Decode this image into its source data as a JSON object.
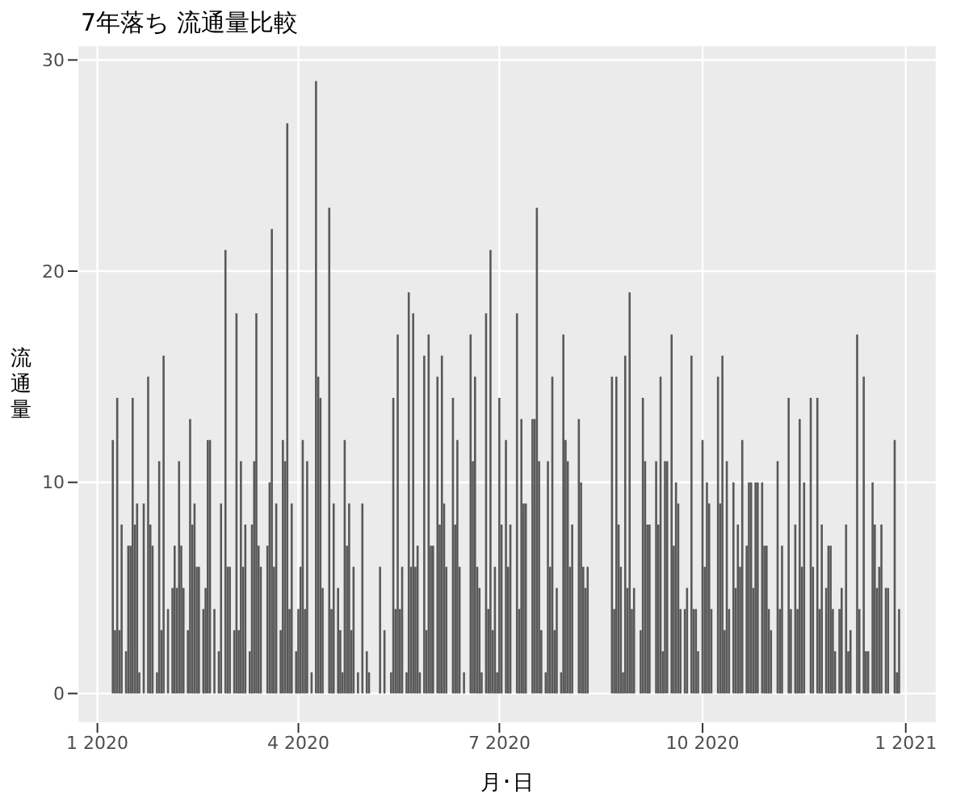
{
  "chart_data": {
    "type": "bar",
    "title": "7年落ち 流通量比較",
    "xlabel": "月･日",
    "ylabel": "流通量",
    "color": "#595959",
    "grid": true,
    "xlim": [
      "2019-12-23",
      "2021-01-15"
    ],
    "xticks": [
      {
        "value": "2020-01-01",
        "label": "1 2020"
      },
      {
        "value": "2020-04-01",
        "label": "4 2020"
      },
      {
        "value": "2020-07-01",
        "label": "7 2020"
      },
      {
        "value": "2020-10-01",
        "label": "10 2020"
      },
      {
        "value": "2021-01-01",
        "label": "1 2021"
      }
    ],
    "ylim": [
      -1.4,
      30.7
    ],
    "yticks": [
      0,
      10,
      20,
      30
    ],
    "x": [
      "2020-01-08",
      "2020-01-09",
      "2020-01-10",
      "2020-01-11",
      "2020-01-12",
      "2020-01-14",
      "2020-01-15",
      "2020-01-16",
      "2020-01-17",
      "2020-01-18",
      "2020-01-19",
      "2020-01-20",
      "2020-01-22",
      "2020-01-24",
      "2020-01-25",
      "2020-01-26",
      "2020-01-28",
      "2020-01-29",
      "2020-01-30",
      "2020-01-31",
      "2020-02-02",
      "2020-02-04",
      "2020-02-05",
      "2020-02-06",
      "2020-02-07",
      "2020-02-08",
      "2020-02-09",
      "2020-02-11",
      "2020-02-12",
      "2020-02-13",
      "2020-02-14",
      "2020-02-15",
      "2020-02-16",
      "2020-02-18",
      "2020-02-19",
      "2020-02-20",
      "2020-02-21",
      "2020-02-23",
      "2020-02-25",
      "2020-02-26",
      "2020-02-28",
      "2020-02-29",
      "2020-03-01",
      "2020-03-03",
      "2020-03-04",
      "2020-03-05",
      "2020-03-06",
      "2020-03-07",
      "2020-03-08",
      "2020-03-10",
      "2020-03-11",
      "2020-03-12",
      "2020-03-13",
      "2020-03-14",
      "2020-03-15",
      "2020-03-18",
      "2020-03-19",
      "2020-03-20",
      "2020-03-21",
      "2020-03-22",
      "2020-03-24",
      "2020-03-25",
      "2020-03-26",
      "2020-03-27",
      "2020-03-28",
      "2020-03-29",
      "2020-03-31",
      "2020-04-01",
      "2020-04-02",
      "2020-04-03",
      "2020-04-04",
      "2020-04-05",
      "2020-04-07",
      "2020-04-09",
      "2020-04-10",
      "2020-04-11",
      "2020-04-12",
      "2020-04-15",
      "2020-04-16",
      "2020-04-17",
      "2020-04-19",
      "2020-04-20",
      "2020-04-21",
      "2020-04-22",
      "2020-04-23",
      "2020-04-24",
      "2020-04-25",
      "2020-04-26",
      "2020-04-28",
      "2020-04-30",
      "2020-05-02",
      "2020-05-03",
      "2020-05-08",
      "2020-05-10",
      "2020-05-13",
      "2020-05-14",
      "2020-05-15",
      "2020-05-16",
      "2020-05-17",
      "2020-05-18",
      "2020-05-20",
      "2020-05-21",
      "2020-05-22",
      "2020-05-23",
      "2020-05-24",
      "2020-05-25",
      "2020-05-26",
      "2020-05-28",
      "2020-05-29",
      "2020-05-30",
      "2020-05-31",
      "2020-06-01",
      "2020-06-03",
      "2020-06-04",
      "2020-06-05",
      "2020-06-06",
      "2020-06-07",
      "2020-06-10",
      "2020-06-11",
      "2020-06-12",
      "2020-06-13",
      "2020-06-15",
      "2020-06-18",
      "2020-06-19",
      "2020-06-20",
      "2020-06-21",
      "2020-06-22",
      "2020-06-23",
      "2020-06-25",
      "2020-06-26",
      "2020-06-27",
      "2020-06-28",
      "2020-06-29",
      "2020-06-30",
      "2020-07-01",
      "2020-07-02",
      "2020-07-04",
      "2020-07-05",
      "2020-07-06",
      "2020-07-09",
      "2020-07-10",
      "2020-07-11",
      "2020-07-12",
      "2020-07-13",
      "2020-07-16",
      "2020-07-17",
      "2020-07-18",
      "2020-07-19",
      "2020-07-20",
      "2020-07-22",
      "2020-07-23",
      "2020-07-24",
      "2020-07-25",
      "2020-07-26",
      "2020-07-27",
      "2020-07-29",
      "2020-07-30",
      "2020-07-31",
      "2020-08-01",
      "2020-08-02",
      "2020-08-03",
      "2020-08-06",
      "2020-08-07",
      "2020-08-08",
      "2020-08-09",
      "2020-08-10",
      "2020-08-21",
      "2020-08-22",
      "2020-08-23",
      "2020-08-24",
      "2020-08-25",
      "2020-08-26",
      "2020-08-27",
      "2020-08-28",
      "2020-08-29",
      "2020-08-30",
      "2020-08-31",
      "2020-09-03",
      "2020-09-04",
      "2020-09-05",
      "2020-09-06",
      "2020-09-07",
      "2020-09-10",
      "2020-09-11",
      "2020-09-12",
      "2020-09-13",
      "2020-09-14",
      "2020-09-15",
      "2020-09-17",
      "2020-09-18",
      "2020-09-19",
      "2020-09-20",
      "2020-09-21",
      "2020-09-23",
      "2020-09-24",
      "2020-09-26",
      "2020-09-27",
      "2020-09-28",
      "2020-09-29",
      "2020-10-01",
      "2020-10-02",
      "2020-10-03",
      "2020-10-04",
      "2020-10-05",
      "2020-10-08",
      "2020-10-09",
      "2020-10-10",
      "2020-10-11",
      "2020-10-12",
      "2020-10-13",
      "2020-10-15",
      "2020-10-16",
      "2020-10-17",
      "2020-10-18",
      "2020-10-19",
      "2020-10-21",
      "2020-10-22",
      "2020-10-23",
      "2020-10-24",
      "2020-10-25",
      "2020-10-26",
      "2020-10-28",
      "2020-10-29",
      "2020-10-30",
      "2020-10-31",
      "2020-11-01",
      "2020-11-04",
      "2020-11-05",
      "2020-11-06",
      "2020-11-09",
      "2020-11-10",
      "2020-11-12",
      "2020-11-13",
      "2020-11-14",
      "2020-11-15",
      "2020-11-16",
      "2020-11-19",
      "2020-11-20",
      "2020-11-22",
      "2020-11-23",
      "2020-11-24",
      "2020-11-26",
      "2020-11-27",
      "2020-11-28",
      "2020-11-29",
      "2020-11-30",
      "2020-12-02",
      "2020-12-03",
      "2020-12-05",
      "2020-12-06",
      "2020-12-07",
      "2020-12-10",
      "2020-12-11",
      "2020-12-13",
      "2020-12-14",
      "2020-12-15",
      "2020-12-17",
      "2020-12-18",
      "2020-12-19",
      "2020-12-20",
      "2020-12-21",
      "2020-12-23",
      "2020-12-24",
      "2020-12-27",
      "2020-12-28",
      "2020-12-29"
    ],
    "values": [
      12,
      3,
      14,
      3,
      8,
      2,
      7,
      7,
      14,
      8,
      9,
      1,
      9,
      15,
      8,
      7,
      1,
      11,
      3,
      16,
      4,
      5,
      7,
      5,
      11,
      7,
      5,
      3,
      13,
      8,
      9,
      6,
      6,
      4,
      5,
      12,
      12,
      4,
      2,
      9,
      21,
      6,
      6,
      3,
      18,
      3,
      11,
      6,
      8,
      2,
      8,
      11,
      18,
      7,
      6,
      7,
      10,
      22,
      6,
      9,
      3,
      12,
      11,
      27,
      4,
      9,
      2,
      4,
      6,
      12,
      4,
      11,
      1,
      29,
      15,
      14,
      5,
      23,
      4,
      9,
      5,
      3,
      1,
      12,
      7,
      9,
      3,
      6,
      1,
      9,
      2,
      1,
      6,
      3,
      1,
      14,
      4,
      17,
      4,
      6,
      1,
      19,
      6,
      18,
      6,
      7,
      1,
      16,
      3,
      17,
      7,
      7,
      15,
      8,
      16,
      9,
      6,
      14,
      8,
      12,
      6,
      1,
      17,
      11,
      15,
      6,
      5,
      1,
      18,
      4,
      21,
      3,
      6,
      1,
      14,
      8,
      12,
      6,
      8,
      18,
      4,
      13,
      9,
      9,
      13,
      13,
      23,
      11,
      3,
      1,
      11,
      6,
      15,
      3,
      5,
      1,
      17,
      12,
      11,
      6,
      8,
      13,
      10,
      6,
      5,
      6,
      15,
      4,
      15,
      8,
      6,
      1,
      16,
      5,
      19,
      4,
      5,
      3,
      14,
      11,
      8,
      8,
      11,
      8,
      15,
      2,
      11,
      11,
      17,
      7,
      10,
      9,
      4,
      4,
      5,
      16,
      4,
      4,
      2,
      12,
      6,
      10,
      9,
      4,
      15,
      9,
      16,
      3,
      11,
      4,
      10,
      5,
      8,
      6,
      12,
      7,
      10,
      10,
      5,
      10,
      10,
      10,
      7,
      7,
      4,
      3,
      11,
      4,
      7,
      14,
      4,
      8,
      4,
      13,
      6,
      10,
      14,
      6,
      14,
      4,
      8,
      5,
      7,
      7,
      4,
      2,
      4,
      5,
      8,
      2,
      3,
      17,
      4,
      15,
      2,
      2,
      10,
      8,
      5,
      6,
      8,
      5,
      5,
      12,
      1,
      4
    ]
  }
}
